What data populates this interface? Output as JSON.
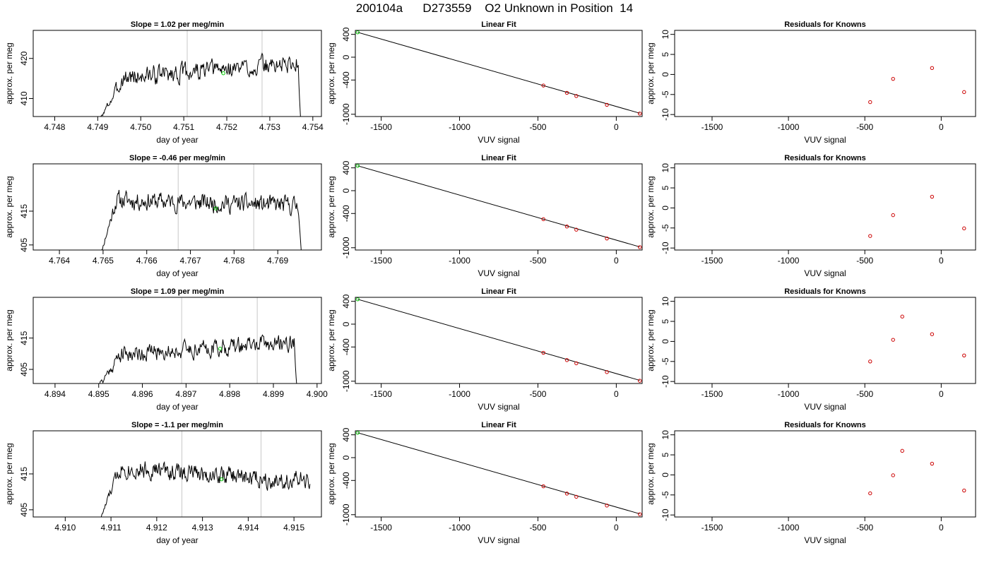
{
  "figure_title": "200104a      D273559    O2 Unknown in Position  14",
  "colors": {
    "line": "#000000",
    "known_point": "#cc0000",
    "unknown_point": "#00cc00",
    "vline": "#c8c8c8"
  },
  "chart_data": [
    {
      "type": "line",
      "title": "Slope =  1.02  per meg/min",
      "xlabel": "day of year",
      "ylabel": "approx. per meg",
      "xlim": [
        4.7475,
        4.7542
      ],
      "ylim": [
        405.5,
        427
      ],
      "xticks": [
        "4.748",
        "4.749",
        "4.750",
        "4.751",
        "4.752",
        "4.753",
        "4.754"
      ],
      "xtick_values": [
        4.748,
        4.749,
        4.75,
        4.751,
        4.752,
        4.753,
        4.754
      ],
      "yticks": [
        "410",
        "420"
      ],
      "ytick_values": [
        410,
        420
      ],
      "vlines": [
        4.75108,
        4.75282
      ],
      "unknown_point": {
        "x": 4.75192,
        "y": 416.3
      },
      "trace": {
        "x_start": 4.749,
        "x_end": 4.75372,
        "base": 416.8,
        "drift": 1.02,
        "noise": 2.0,
        "rise": 0.0006,
        "fall": 6e-05,
        "floor": 404,
        "seed": 3
      }
    },
    {
      "type": "scatter",
      "title": "Linear Fit",
      "xlabel": "VUV signal",
      "ylabel": "approx. per meg",
      "xlim": [
        -1665,
        165
      ],
      "ylim": [
        -1040,
        470
      ],
      "xticks": [
        "-1500",
        "-1000",
        "-500",
        "0"
      ],
      "xtick_values": [
        -1500,
        -1000,
        -500,
        0
      ],
      "yticks": [
        "400",
        "0",
        "-400",
        "-1000"
      ],
      "ytick_values": [
        400,
        0,
        -400,
        -1000
      ],
      "fit_line": [
        [
          -1650,
          436
        ],
        [
          150,
          -982
        ]
      ],
      "known_points": [
        [
          -465,
          -497
        ],
        [
          -315,
          -625
        ],
        [
          -255,
          -680
        ],
        [
          -60,
          -835
        ],
        [
          150,
          -988
        ]
      ],
      "unknown_point": [
        -1650,
        436
      ]
    },
    {
      "type": "scatter",
      "title": "Residuals for Knowns",
      "xlabel": "VUV signal",
      "ylabel": "approx. per meg",
      "xlim": [
        -1745,
        225
      ],
      "ylim": [
        -10.5,
        11
      ],
      "xticks": [
        "-1500",
        "-1000",
        "-500",
        "0"
      ],
      "xtick_values": [
        -1500,
        -1000,
        -500,
        0
      ],
      "yticks": [
        "10",
        "5",
        "0",
        "-5",
        "-10"
      ],
      "ytick_values": [
        10,
        5,
        0,
        -5,
        -10
      ],
      "known_points": [
        [
          -465,
          -6.9
        ],
        [
          -315,
          -1.1
        ],
        [
          -60,
          1.6
        ],
        [
          150,
          -4.4
        ]
      ]
    },
    {
      "type": "line",
      "title": "Slope =  -0.46  per meg/min",
      "xlabel": "day of year",
      "ylabel": "approx. per meg",
      "xlim": [
        4.7634,
        4.77
      ],
      "ylim": [
        403.5,
        429
      ],
      "xticks": [
        "4.764",
        "4.765",
        "4.766",
        "4.767",
        "4.768",
        "4.769"
      ],
      "xtick_values": [
        4.764,
        4.765,
        4.766,
        4.767,
        4.768,
        4.769
      ],
      "yticks": [
        "405",
        "415"
      ],
      "ytick_values": [
        405,
        415
      ],
      "vlines": [
        4.76672,
        4.76845
      ],
      "unknown_point": {
        "x": 4.76758,
        "y": 415.8
      },
      "trace": {
        "x_start": 4.7649,
        "x_end": 4.76955,
        "base": 417.5,
        "drift": -0.46,
        "noise": 2.3,
        "rise": 0.0004,
        "fall": 7e-05,
        "floor": 400,
        "seed": 11
      }
    },
    {
      "type": "scatter",
      "title": "Linear Fit",
      "xlabel": "VUV signal",
      "ylabel": "approx. per meg",
      "xlim": [
        -1665,
        165
      ],
      "ylim": [
        -1040,
        470
      ],
      "xticks": [
        "-1500",
        "-1000",
        "-500",
        "0"
      ],
      "xtick_values": [
        -1500,
        -1000,
        -500,
        0
      ],
      "yticks": [
        "400",
        "0",
        "-400",
        "-1000"
      ],
      "ytick_values": [
        400,
        0,
        -400,
        -1000
      ],
      "fit_line": [
        [
          -1650,
          436
        ],
        [
          150,
          -985
        ]
      ],
      "known_points": [
        [
          -465,
          -500
        ],
        [
          -315,
          -628
        ],
        [
          -255,
          -684
        ],
        [
          -60,
          -838
        ],
        [
          150,
          -990
        ]
      ],
      "unknown_point": [
        -1650,
        436
      ]
    },
    {
      "type": "scatter",
      "title": "Residuals for Knowns",
      "xlabel": "VUV signal",
      "ylabel": "approx. per meg",
      "xlim": [
        -1745,
        225
      ],
      "ylim": [
        -10.5,
        11
      ],
      "xticks": [
        "-1500",
        "-1000",
        "-500",
        "0"
      ],
      "xtick_values": [
        -1500,
        -1000,
        -500,
        0
      ],
      "yticks": [
        "10",
        "5",
        "0",
        "-5",
        "-10"
      ],
      "ytick_values": [
        10,
        5,
        0,
        -5,
        -10
      ],
      "known_points": [
        [
          -465,
          -7.0
        ],
        [
          -315,
          -1.8
        ],
        [
          -60,
          2.8
        ],
        [
          150,
          -5.1
        ]
      ]
    },
    {
      "type": "line",
      "title": "Slope =  1.09  per meg/min",
      "xlabel": "day of year",
      "ylabel": "approx. per meg",
      "xlim": [
        4.8935,
        4.9001
      ],
      "ylim": [
        400.5,
        428
      ],
      "xticks": [
        "4.894",
        "4.895",
        "4.896",
        "4.897",
        "4.898",
        "4.899",
        "4.900"
      ],
      "xtick_values": [
        4.894,
        4.895,
        4.896,
        4.897,
        4.898,
        4.899,
        4.9
      ],
      "yticks": [
        "405",
        "415"
      ],
      "ytick_values": [
        405,
        415
      ],
      "vlines": [
        4.8969,
        4.89863
      ],
      "unknown_point": {
        "x": 4.89778,
        "y": 411.6
      },
      "trace": {
        "x_start": 4.8948,
        "x_end": 4.89955,
        "base": 411.5,
        "drift": 1.09,
        "noise": 2.3,
        "rise": 0.0007,
        "fall": 7e-05,
        "floor": 396,
        "seed": 21
      }
    },
    {
      "type": "scatter",
      "title": "Linear Fit",
      "xlabel": "VUV signal",
      "ylabel": "approx. per meg",
      "xlim": [
        -1665,
        165
      ],
      "ylim": [
        -1040,
        470
      ],
      "xticks": [
        "-1500",
        "-1000",
        "-500",
        "0"
      ],
      "xtick_values": [
        -1500,
        -1000,
        -500,
        0
      ],
      "yticks": [
        "400",
        "0",
        "-400",
        "-1000"
      ],
      "ytick_values": [
        400,
        0,
        -400,
        -1000
      ],
      "fit_line": [
        [
          -1650,
          436
        ],
        [
          150,
          -985
        ]
      ],
      "known_points": [
        [
          -465,
          -502
        ],
        [
          -315,
          -630
        ],
        [
          -255,
          -686
        ],
        [
          -60,
          -840
        ],
        [
          150,
          -992
        ]
      ],
      "unknown_point": [
        -1650,
        436
      ]
    },
    {
      "type": "scatter",
      "title": "Residuals for Knowns",
      "xlabel": "VUV signal",
      "ylabel": "approx. per meg",
      "xlim": [
        -1745,
        225
      ],
      "ylim": [
        -10.5,
        11
      ],
      "xticks": [
        "-1500",
        "-1000",
        "-500",
        "0"
      ],
      "xtick_values": [
        -1500,
        -1000,
        -500,
        0
      ],
      "yticks": [
        "10",
        "5",
        "0",
        "-5",
        "-10"
      ],
      "ytick_values": [
        10,
        5,
        0,
        -5,
        -10
      ],
      "known_points": [
        [
          -465,
          -5.0
        ],
        [
          -315,
          0.4
        ],
        [
          -255,
          6.2
        ],
        [
          -60,
          1.8
        ],
        [
          150,
          -3.5
        ]
      ]
    },
    {
      "type": "line",
      "title": "Slope =  -1.1  per meg/min",
      "xlabel": "day of year",
      "ylabel": "approx. per meg",
      "xlim": [
        4.9093,
        4.9156
      ],
      "ylim": [
        403,
        427
      ],
      "xticks": [
        "4.910",
        "4.911",
        "4.912",
        "4.913",
        "4.914",
        "4.915"
      ],
      "xtick_values": [
        4.91,
        4.911,
        4.912,
        4.913,
        4.914,
        4.915
      ],
      "yticks": [
        "405",
        "415"
      ],
      "ytick_values": [
        405,
        415
      ],
      "vlines": [
        4.91255,
        4.91428
      ],
      "unknown_point": {
        "x": 4.91342,
        "y": 413.5
      },
      "trace": {
        "x_start": 4.9107,
        "x_end": 4.91535,
        "base": 415.0,
        "drift": -1.1,
        "noise": 2.2,
        "rise": 0.0005,
        "fall": 0.0,
        "floor": 400,
        "seed": 33
      }
    },
    {
      "type": "scatter",
      "title": "Linear Fit",
      "xlabel": "VUV signal",
      "ylabel": "approx. per meg",
      "xlim": [
        -1665,
        165
      ],
      "ylim": [
        -1040,
        470
      ],
      "xticks": [
        "-1500",
        "-1000",
        "-500",
        "0"
      ],
      "xtick_values": [
        -1500,
        -1000,
        -500,
        0
      ],
      "yticks": [
        "400",
        "0",
        "-400",
        "-1000"
      ],
      "ytick_values": [
        400,
        0,
        -400,
        -1000
      ],
      "fit_line": [
        [
          -1650,
          436
        ],
        [
          150,
          -985
        ]
      ],
      "known_points": [
        [
          -465,
          -502
        ],
        [
          -315,
          -630
        ],
        [
          -255,
          -686
        ],
        [
          -60,
          -840
        ],
        [
          150,
          -992
        ]
      ],
      "unknown_point": [
        -1650,
        436
      ]
    },
    {
      "type": "scatter",
      "title": "Residuals for Knowns",
      "xlabel": "VUV signal",
      "ylabel": "approx. per meg",
      "xlim": [
        -1745,
        225
      ],
      "ylim": [
        -10.5,
        11
      ],
      "xticks": [
        "-1500",
        "-1000",
        "-500",
        "0"
      ],
      "xtick_values": [
        -1500,
        -1000,
        -500,
        0
      ],
      "yticks": [
        "10",
        "5",
        "0",
        "-5",
        "-10"
      ],
      "ytick_values": [
        10,
        5,
        0,
        -5,
        -10
      ],
      "known_points": [
        [
          -465,
          -4.6
        ],
        [
          -315,
          -0.1
        ],
        [
          -255,
          6.0
        ],
        [
          -60,
          2.8
        ],
        [
          150,
          -3.9
        ]
      ]
    }
  ]
}
